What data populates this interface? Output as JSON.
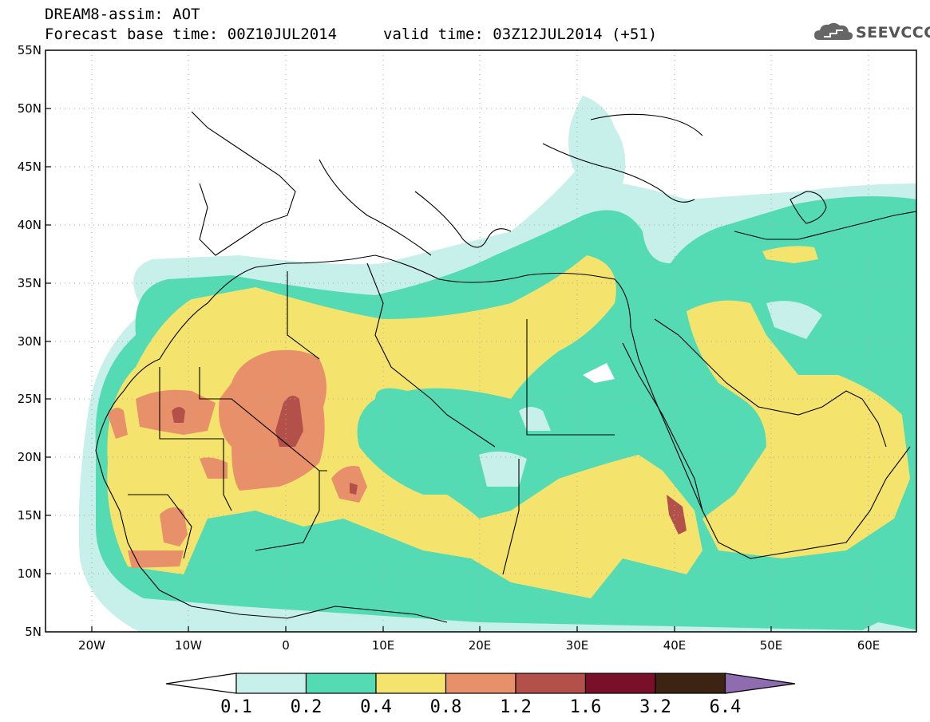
{
  "header": {
    "title": "DREAM8-assim: AOT",
    "forecast_base": "Forecast base time: 00Z10JUL2014",
    "valid_time": "valid time: 03Z12JUL2014 (+51)",
    "logo_text": "SEEVCCC"
  },
  "map": {
    "lat_labels": [
      "55N",
      "50N",
      "45N",
      "40N",
      "35N",
      "30N",
      "25N",
      "20N",
      "15N",
      "10N",
      "5N"
    ],
    "lon_labels": [
      "20W",
      "10W",
      "0",
      "10E",
      "20E",
      "30E",
      "40E",
      "50E",
      "60E"
    ]
  },
  "colorbar": {
    "labels": [
      "0.1",
      "0.2",
      "0.4",
      "0.8",
      "1.2",
      "1.6",
      "3.2",
      "6.4"
    ],
    "colors": [
      "#c7f0ea",
      "#55dbb4",
      "#f4e46e",
      "#e8906a",
      "#b3504a",
      "#7a0f2a",
      "#3d2412",
      "#8f6bb0"
    ]
  },
  "colors": {
    "lvl1": "#c7f0ea",
    "lvl2": "#55dbb4",
    "lvl3": "#f4e46e",
    "lvl4": "#e8906a",
    "lvl5": "#b3504a",
    "logo": "#555555"
  }
}
